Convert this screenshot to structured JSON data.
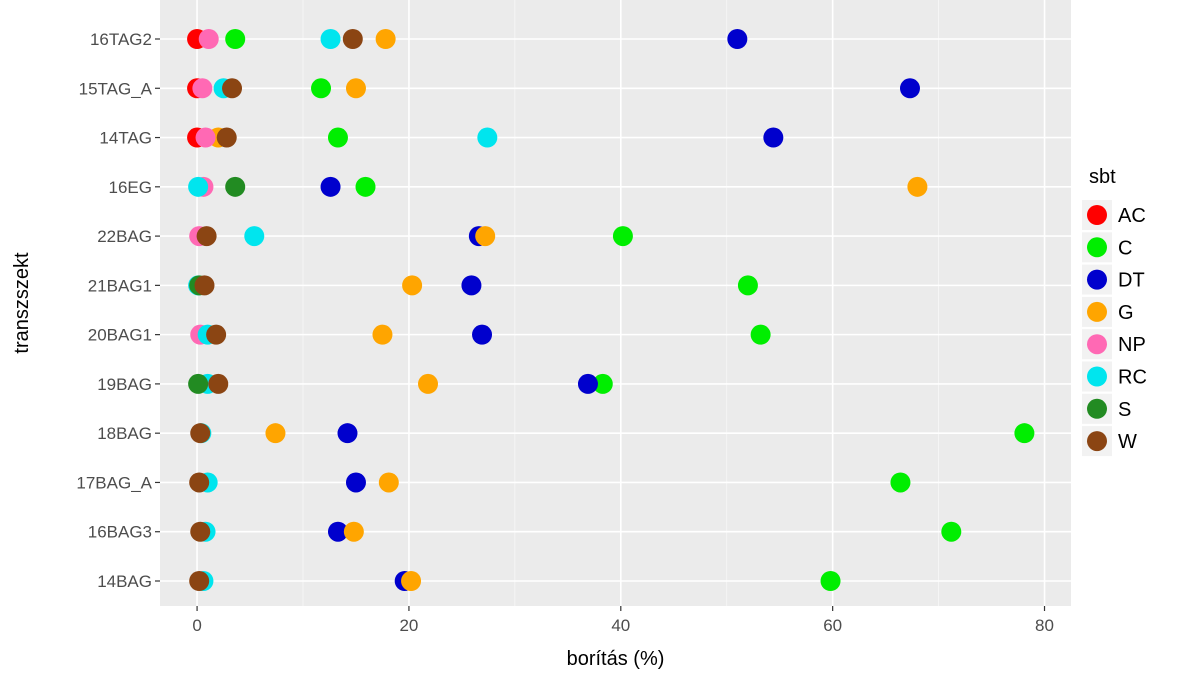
{
  "chart_data": {
    "type": "scatter",
    "xlabel": "borítás (%)",
    "ylabel": "transzszekt",
    "xlim": [
      -3.5,
      82.5
    ],
    "x_ticks": [
      0,
      20,
      40,
      60,
      80
    ],
    "x_minor_ticks": [
      10,
      30,
      50,
      70
    ],
    "categories": [
      "16TAG2",
      "15TAG_A",
      "14TAG",
      "16EG",
      "22BAG",
      "21BAG1",
      "20BAG1",
      "19BAG",
      "18BAG",
      "17BAG_A",
      "16BAG3",
      "14BAG"
    ],
    "grid": true,
    "legend_title": "sbt",
    "legend_position": "right",
    "series": [
      {
        "name": "AC",
        "color": "#ff0000",
        "values": [
          0,
          0,
          0,
          null,
          null,
          null,
          null,
          null,
          null,
          null,
          null,
          null
        ]
      },
      {
        "name": "C",
        "color": "#00ee00",
        "values": [
          3.6,
          11.7,
          13.3,
          15.9,
          40.2,
          52.0,
          53.2,
          38.3,
          78.1,
          66.4,
          71.2,
          59.8
        ]
      },
      {
        "name": "DT",
        "color": "#0000cd",
        "values": [
          51.0,
          67.3,
          54.4,
          12.6,
          26.6,
          25.9,
          26.9,
          36.9,
          14.2,
          15.0,
          13.3,
          19.6
        ]
      },
      {
        "name": "G",
        "color": "#ffa500",
        "values": [
          17.8,
          15.0,
          2.0,
          68.0,
          27.2,
          20.3,
          17.5,
          21.8,
          7.4,
          18.1,
          14.8,
          20.2
        ]
      },
      {
        "name": "NP",
        "color": "#ff69b4",
        "values": [
          1.1,
          0.5,
          0.8,
          0.6,
          0.2,
          null,
          0.3,
          null,
          null,
          null,
          null,
          null
        ]
      },
      {
        "name": "RC",
        "color": "#00e5ee",
        "values": [
          12.6,
          2.5,
          27.4,
          0.1,
          5.4,
          0.1,
          1.0,
          1.0,
          0.4,
          1.0,
          0.8,
          0.6
        ]
      },
      {
        "name": "S",
        "color": "#228b22",
        "values": [
          null,
          null,
          null,
          3.6,
          null,
          0.2,
          null,
          0.1,
          null,
          null,
          null,
          null
        ]
      },
      {
        "name": "W",
        "color": "#8b4513",
        "values": [
          14.7,
          3.3,
          2.8,
          null,
          0.9,
          0.7,
          1.8,
          2.0,
          0.3,
          0.2,
          0.3,
          0.2
        ]
      }
    ]
  }
}
